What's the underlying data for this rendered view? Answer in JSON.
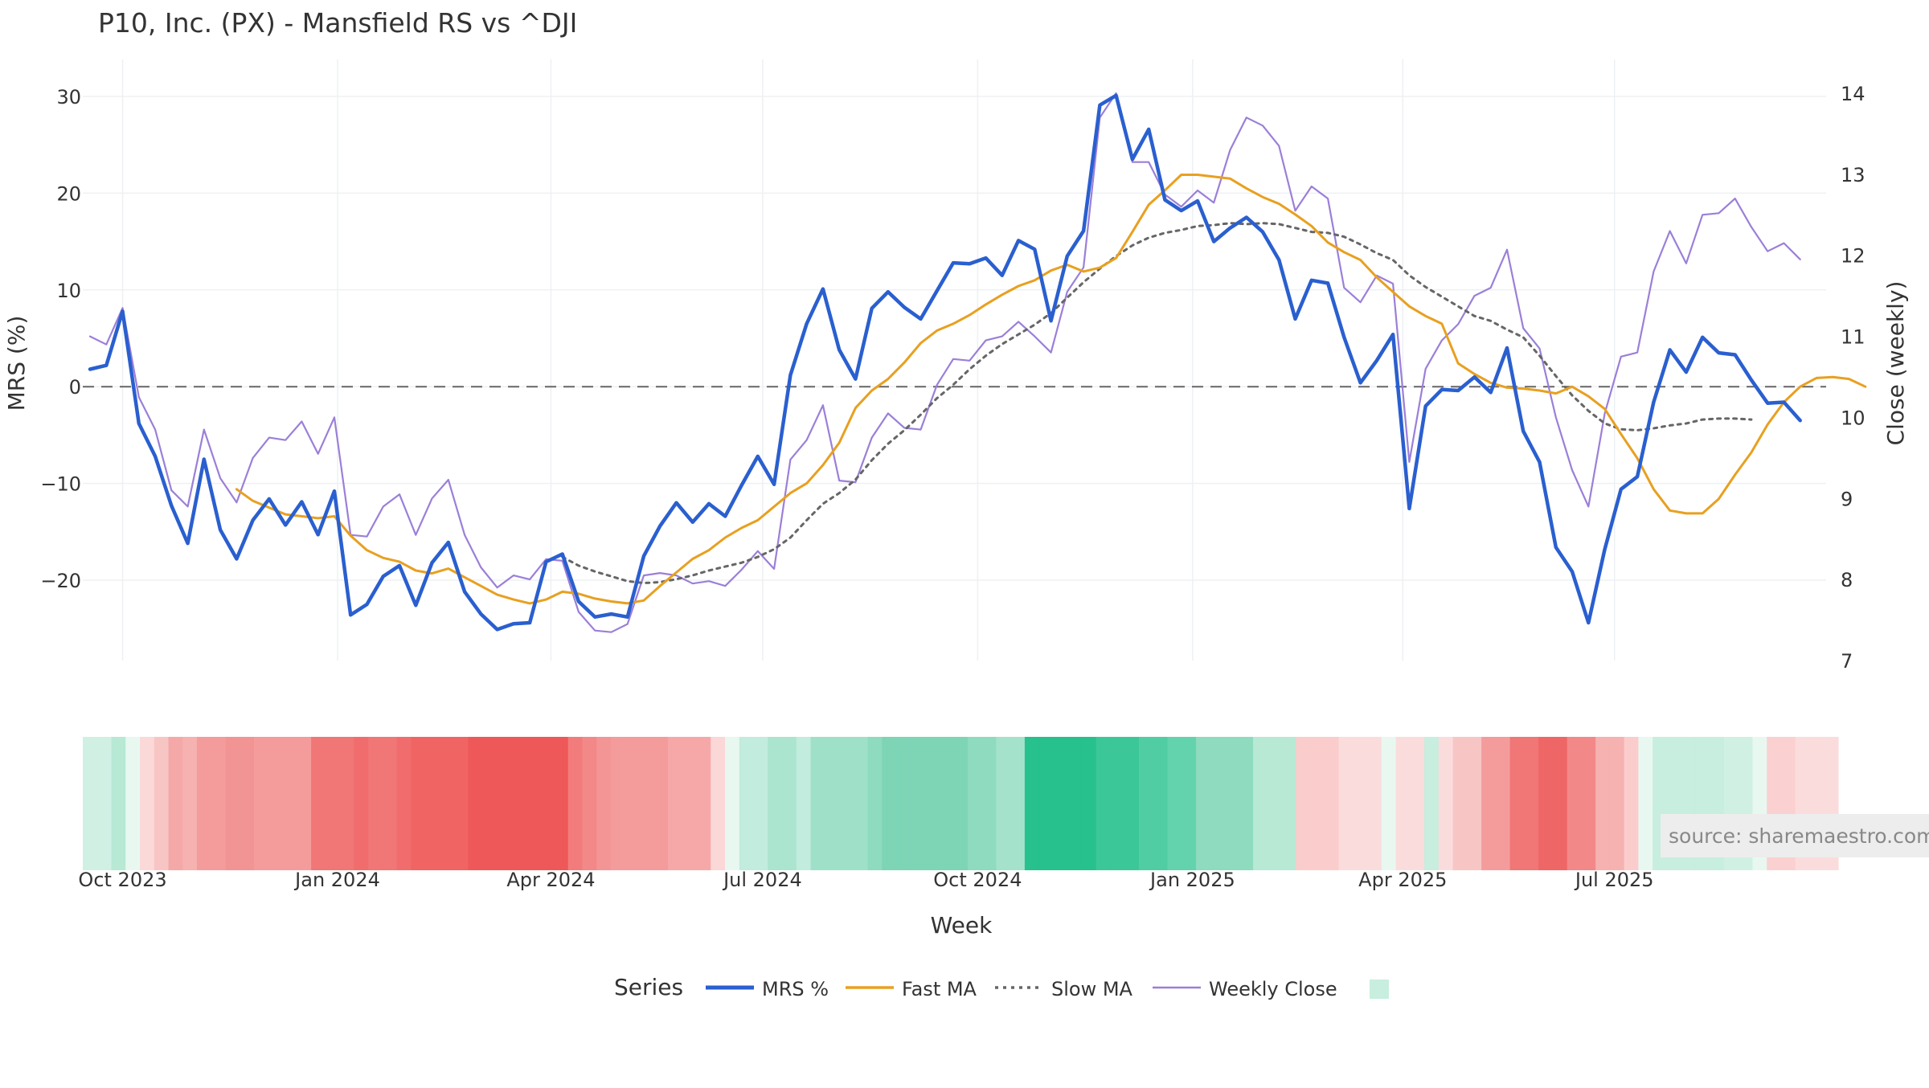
{
  "chart_data": {
    "type": "line",
    "title": "P10, Inc. (PX) - Mansfield RS vs ^DJI",
    "xlabel": "Week",
    "ylabel_left": "MRS (%)",
    "ylabel_right": "Close (weekly)",
    "ylim_left": [
      -28.5,
      30.5
    ],
    "ylim_right": [
      7,
      14
    ],
    "yticks_left": [
      30,
      20,
      10,
      0,
      -10,
      -20
    ],
    "yticks_left_labels": [
      "30",
      "20",
      "10",
      "0",
      "−10",
      "−20"
    ],
    "yticks_right": [
      14,
      13,
      12,
      11,
      10,
      9,
      8,
      7
    ],
    "yticks_right_labels": [
      "14",
      "13",
      "12",
      "11",
      "10",
      "9",
      "8",
      "7"
    ],
    "x_start_index": 0,
    "x_end_index": 106,
    "xticks": [
      {
        "label": "Oct 2023",
        "index": 2
      },
      {
        "label": "Jan 2024",
        "index": 15.2
      },
      {
        "label": "Apr 2024",
        "index": 28.3
      },
      {
        "label": "Jul 2024",
        "index": 41.3
      },
      {
        "label": "Oct 2024",
        "index": 54.5
      },
      {
        "label": "Jan 2025",
        "index": 67.7
      },
      {
        "label": "Apr 2025",
        "index": 80.6
      },
      {
        "label": "Jul 2025",
        "index": 93.6
      }
    ],
    "zero_line": 0,
    "series": [
      {
        "name": "MRS %",
        "color": "#2a5fcf",
        "axis": "left",
        "style": "solid-thick",
        "values": [
          1.8,
          2.2,
          7.8,
          -3.8,
          -7.2,
          -12.3,
          -16.2,
          -7.5,
          -14.8,
          -17.8,
          -13.8,
          -11.6,
          -14.3,
          -11.9,
          -15.3,
          -10.8,
          -23.6,
          -22.5,
          -19.6,
          -18.5,
          -22.6,
          -18.2,
          -16.1,
          -21.2,
          -23.5,
          -25.1,
          -24.5,
          -24.4,
          -18.1,
          -17.3,
          -22.2,
          -23.8,
          -23.5,
          -23.8,
          -17.5,
          -14.4,
          -12.0,
          -14.0,
          -12.1,
          -13.4,
          -10.2,
          -7.2,
          -10.1,
          1.2,
          6.5,
          10.1,
          3.8,
          0.8,
          8.1,
          9.8,
          8.2,
          7.0,
          9.9,
          12.8,
          12.7,
          13.3,
          11.5,
          15.1,
          14.2,
          6.8,
          13.5,
          16.1,
          29.1,
          30.1,
          23.5,
          26.6,
          19.3,
          18.2,
          19.2,
          15.0,
          16.4,
          17.5,
          16.0,
          13.1,
          7.0,
          11.0,
          10.7,
          5.1,
          0.4,
          2.7,
          5.4,
          -12.6,
          -2.0,
          -0.3,
          -0.4,
          1.0,
          -0.6,
          4.0,
          -4.6,
          -7.8,
          -16.6,
          -19.1,
          -24.4,
          -16.8,
          -10.6,
          -9.3,
          -1.6,
          3.8,
          1.5,
          5.1,
          3.5,
          3.3,
          0.7,
          -1.7,
          -1.6,
          -3.5
        ]
      },
      {
        "name": "Fast MA",
        "color": "#e8a020",
        "axis": "left",
        "style": "solid",
        "start_index": 9,
        "values": [
          -10.6,
          -11.8,
          -12.5,
          -13.2,
          -13.4,
          -13.6,
          -13.4,
          -15.4,
          -16.9,
          -17.7,
          -18.1,
          -19.0,
          -19.3,
          -18.8,
          -19.7,
          -20.6,
          -21.5,
          -22.0,
          -22.4,
          -22.0,
          -21.2,
          -21.4,
          -21.9,
          -22.2,
          -22.4,
          -22.1,
          -20.6,
          -19.2,
          -17.8,
          -16.9,
          -15.6,
          -14.6,
          -13.8,
          -12.4,
          -11.0,
          -10.0,
          -8.1,
          -5.8,
          -2.2,
          -0.4,
          0.8,
          2.5,
          4.5,
          5.8,
          6.5,
          7.4,
          8.5,
          9.5,
          10.4,
          11.0,
          12.0,
          12.6,
          11.9,
          12.3,
          13.3,
          16.0,
          18.8,
          20.3,
          21.9,
          21.9,
          21.7,
          21.5,
          20.5,
          19.6,
          18.9,
          17.8,
          16.6,
          14.9,
          13.9,
          13.1,
          11.3,
          9.8,
          8.3,
          7.3,
          6.5,
          2.4,
          1.3,
          0.4,
          -0.1,
          -0.2,
          -0.4,
          -0.7,
          0.0,
          -1.0,
          -2.3,
          -4.9,
          -7.4,
          -10.6,
          -12.8,
          -13.1,
          -13.1,
          -11.6,
          -9.1,
          -6.8,
          -3.9,
          -1.6,
          0.0,
          0.9,
          1.0,
          0.8,
          0.0
        ]
      },
      {
        "name": "Slow MA",
        "color": "#666666",
        "axis": "left",
        "style": "dotted",
        "start_index": 29,
        "values": [
          -17.6,
          -18.5,
          -19.1,
          -19.6,
          -20.1,
          -20.3,
          -20.2,
          -19.9,
          -19.5,
          -19.0,
          -18.6,
          -18.2,
          -17.6,
          -16.8,
          -15.6,
          -13.8,
          -12.1,
          -11.0,
          -9.6,
          -7.6,
          -5.9,
          -4.5,
          -2.9,
          -1.2,
          0.2,
          1.8,
          3.2,
          4.4,
          5.4,
          6.4,
          7.6,
          9.2,
          10.8,
          12.2,
          13.5,
          14.6,
          15.4,
          15.9,
          16.2,
          16.6,
          16.7,
          16.9,
          16.8,
          16.9,
          16.8,
          16.4,
          16.0,
          15.9,
          15.5,
          14.7,
          13.8,
          13.1,
          11.5,
          10.3,
          9.3,
          8.3,
          7.3,
          6.8,
          5.9,
          5.1,
          3.2,
          1.1,
          -0.9,
          -2.5,
          -3.8,
          -4.4,
          -4.5,
          -4.3,
          -4.0,
          -3.8,
          -3.4,
          -3.3,
          -3.3,
          -3.4
        ]
      },
      {
        "name": "Weekly Close",
        "color": "#9b7fd8",
        "axis": "right",
        "style": "solid-thin",
        "values": [
          11.0,
          10.9,
          11.35,
          10.25,
          9.85,
          9.1,
          8.9,
          9.85,
          9.25,
          8.95,
          9.5,
          9.75,
          9.72,
          9.95,
          9.55,
          10.0,
          8.55,
          8.53,
          8.9,
          9.05,
          8.55,
          9.0,
          9.23,
          8.55,
          8.15,
          7.9,
          8.05,
          8.0,
          8.25,
          8.23,
          7.6,
          7.37,
          7.35,
          7.45,
          8.05,
          8.08,
          8.05,
          7.95,
          7.98,
          7.92,
          8.12,
          8.35,
          8.13,
          9.48,
          9.72,
          10.15,
          9.22,
          9.2,
          9.75,
          10.05,
          9.87,
          9.85,
          10.4,
          10.72,
          10.7,
          10.95,
          11.0,
          11.18,
          11.0,
          10.8,
          11.55,
          11.85,
          13.7,
          14.0,
          13.15,
          13.15,
          12.75,
          12.6,
          12.8,
          12.65,
          13.3,
          13.7,
          13.6,
          13.35,
          12.55,
          12.85,
          12.7,
          11.6,
          11.42,
          11.75,
          11.65,
          9.45,
          10.6,
          10.95,
          11.15,
          11.5,
          11.6,
          12.07,
          11.1,
          10.85,
          10.0,
          9.35,
          8.9,
          10.05,
          10.75,
          10.8,
          11.8,
          12.3,
          11.9,
          12.5,
          12.52,
          12.7,
          12.35,
          12.05,
          12.15,
          11.95
        ]
      }
    ],
    "heatmap_strip": {
      "description": "weekly MRS color band",
      "colors": [
        "#d0f0e4",
        "#d0f0e4",
        "#b7e9d5",
        "#e8f8f1",
        "#fbd9d9",
        "#f8c5c5",
        "#f5a8a8",
        "#f6b1b1",
        "#f49c9c",
        "#f49c9c",
        "#f39494",
        "#f39494",
        "#f49c9c",
        "#f49c9c",
        "#f49c9c",
        "#f49c9c",
        "#f17676",
        "#f17676",
        "#f17676",
        "#f16d6d",
        "#f17676",
        "#f17676",
        "#f16d6d",
        "#f06464",
        "#f06464",
        "#f06464",
        "#f06464",
        "#ef5858",
        "#ef5858",
        "#ef5858",
        "#ef5858",
        "#ef5858",
        "#ef5858",
        "#ef5858",
        "#f27c7c",
        "#f38888",
        "#f49595",
        "#f49c9c",
        "#f49c9c",
        "#f49c9c",
        "#f49c9c",
        "#f6a8a8",
        "#f6a8a8",
        "#f6a8a8",
        "#fbd7d7",
        "#e8f8f1",
        "#c2ecdd",
        "#c2ecdd",
        "#abe4cf",
        "#abe4cf",
        "#c2ecdd",
        "#9ee1c8",
        "#9ee1c8",
        "#9ee1c8",
        "#9ee1c8",
        "#8edbbf",
        "#7dd5b6",
        "#7dd5b6",
        "#7dd5b6",
        "#7dd5b6",
        "#7dd5b6",
        "#7dd5b6",
        "#8edbbf",
        "#8edbbf",
        "#a4e2cc",
        "#a4e2cc",
        "#26c18d",
        "#26c18d",
        "#26c18d",
        "#26c18d",
        "#26c18d",
        "#3cc798",
        "#3cc798",
        "#3cc798",
        "#50cda2",
        "#50cda2",
        "#62d3ac",
        "#62d3ac",
        "#8edbbf",
        "#8edbbf",
        "#8edbbf",
        "#8edbbf",
        "#b7e9d5",
        "#b7e9d5",
        "#b7e9d5",
        "#fbcccc",
        "#fbcccc",
        "#fbcccc",
        "#fbdcdc",
        "#fbdcdc",
        "#fbdcdc",
        "#e8f8f1",
        "#fbdcdc",
        "#fbdcdc",
        "#c7eede",
        "#fbdcdc",
        "#f8c5c5",
        "#f8c5c5",
        "#f49c9c",
        "#f49c9c",
        "#f17676",
        "#f17676",
        "#ef6666",
        "#ef6666",
        "#f38888",
        "#f38888",
        "#f6b1b1",
        "#f6b1b1",
        "#fbcccc",
        "#e8f8f1",
        "#c7eede",
        "#c7eede",
        "#c7eede",
        "#c7eede",
        "#c7eede",
        "#d0f0e4",
        "#d0f0e4",
        "#e8f8f1",
        "#fbd0d0",
        "#fbd0d0",
        "#fbdcdc",
        "#fbdcdc",
        "#fbdcdc"
      ]
    },
    "legend": {
      "title": "Series",
      "placement": "bottom-center",
      "items": [
        "MRS %",
        "Fast MA",
        "Slow MA",
        "Weekly Close"
      ],
      "extra_swatch_color": "#c7eede"
    },
    "source": "source: sharemaestro.com",
    "grid": true
  }
}
